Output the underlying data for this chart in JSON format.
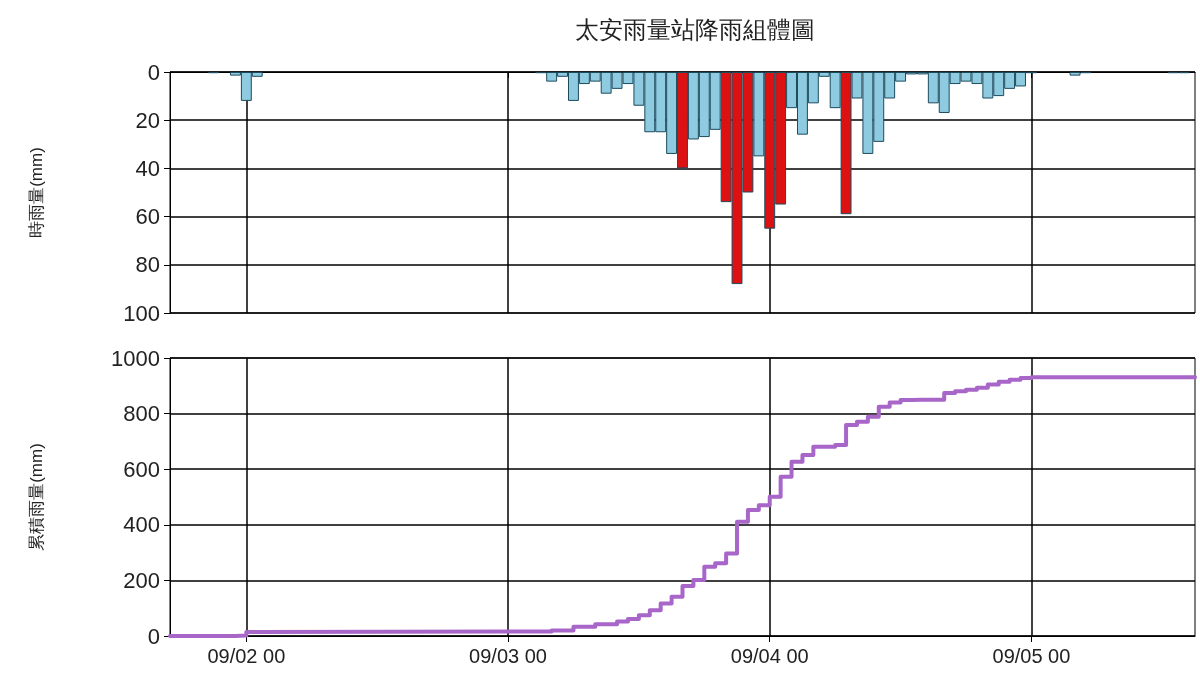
{
  "chart_data": [
    {
      "type": "bar",
      "title": "太安雨量站降雨組體圖",
      "ylabel": "時雨量(mm)",
      "x": [
        "--09-01T21:00",
        "--09-01T23:00",
        "--09-02T00:00",
        "--09-02T01:00",
        "--09-03T03:00",
        "--09-03T04:00",
        "--09-03T05:00",
        "--09-03T06:00",
        "--09-03T07:00",
        "--09-03T08:00",
        "--09-03T09:00",
        "--09-03T10:00",
        "--09-03T11:00",
        "--09-03T12:00",
        "--09-03T13:00",
        "--09-03T14:00",
        "--09-03T15:00",
        "--09-03T16:00",
        "--09-03T17:00",
        "--09-03T18:00",
        "--09-03T19:00",
        "--09-03T20:00",
        "--09-03T21:00",
        "--09-03T22:00",
        "--09-03T23:00",
        "--09-04T00:00",
        "--09-04T01:00",
        "--09-04T02:00",
        "--09-04T03:00",
        "--09-04T04:00",
        "--09-04T05:00",
        "--09-04T06:00",
        "--09-04T07:00",
        "--09-04T08:00",
        "--09-04T09:00",
        "--09-04T10:00",
        "--09-04T11:00",
        "--09-04T12:00",
        "--09-04T13:00",
        "--09-04T14:00",
        "--09-04T15:00",
        "--09-04T16:00",
        "--09-04T17:00",
        "--09-04T18:00",
        "--09-04T19:00",
        "--09-04T20:00",
        "--09-04T21:00",
        "--09-04T22:00",
        "--09-04T23:00",
        "--09-05T00:00",
        "--09-05T04:00",
        "--09-05T05:00",
        "--09-05T13:00",
        "--09-05T14:00"
      ],
      "values": [
        0.5,
        1.5,
        12,
        2,
        0.5,
        4,
        2,
        12,
        5,
        4,
        9,
        7,
        5,
        14,
        25,
        25,
        34,
        40,
        28,
        27,
        24,
        54,
        88,
        50,
        35,
        65,
        55,
        15,
        26,
        13,
        2,
        15,
        59,
        11,
        34,
        29,
        11,
        4,
        1,
        1,
        13,
        17,
        5,
        4,
        5,
        11,
        10,
        7,
        6,
        0.5,
        1.5,
        0.5,
        0.5,
        0.5
      ],
      "colors": [
        "#8ecae0",
        "#8ecae0",
        "#8ecae0",
        "#8ecae0",
        "#8ecae0",
        "#8ecae0",
        "#8ecae0",
        "#8ecae0",
        "#8ecae0",
        "#8ecae0",
        "#8ecae0",
        "#8ecae0",
        "#8ecae0",
        "#8ecae0",
        "#8ecae0",
        "#8ecae0",
        "#8ecae0",
        "#dd1111",
        "#8ecae0",
        "#8ecae0",
        "#8ecae0",
        "#dd1111",
        "#dd1111",
        "#dd1111",
        "#8ecae0",
        "#dd1111",
        "#dd1111",
        "#8ecae0",
        "#8ecae0",
        "#8ecae0",
        "#8ecae0",
        "#8ecae0",
        "#dd1111",
        "#8ecae0",
        "#8ecae0",
        "#8ecae0",
        "#8ecae0",
        "#8ecae0",
        "#8ecae0",
        "#8ecae0",
        "#8ecae0",
        "#8ecae0",
        "#8ecae0",
        "#8ecae0",
        "#8ecae0",
        "#8ecae0",
        "#8ecae0",
        "#8ecae0",
        "#8ecae0",
        "#8ecae0",
        "#8ecae0",
        "#8ecae0",
        "#8ecae0",
        "#8ecae0"
      ],
      "xlim": [
        "--09-01T17:00",
        "--09-05T15:00"
      ],
      "xticks": [
        {
          "value": "--09-02T00:00",
          "label": null
        },
        {
          "value": "--09-03T00:00",
          "label": null
        },
        {
          "value": "--09-04T00:00",
          "label": null
        },
        {
          "value": "--09-05T00:00",
          "label": null
        }
      ],
      "ylim": [
        100,
        0
      ],
      "yticks": [
        0,
        20,
        40,
        60,
        80,
        100
      ],
      "grid": true,
      "tick_labels": "y"
    },
    {
      "type": "step",
      "ylabel": "累積雨量(mm)",
      "color": "#a866c8",
      "x": [
        "--09-01T17:00",
        "--09-01T22:00",
        "--09-01T23:00",
        "--09-02T00:00",
        "--09-02T01:00",
        "--09-03T02:00",
        "--09-03T04:00",
        "--09-03T06:00",
        "--09-03T08:00",
        "--09-03T10:00",
        "--09-03T11:00",
        "--09-03T12:00",
        "--09-03T13:00",
        "--09-03T14:00",
        "--09-03T15:00",
        "--09-03T16:00",
        "--09-03T17:00",
        "--09-03T18:00",
        "--09-03T19:00",
        "--09-03T20:00",
        "--09-03T21:00",
        "--09-03T22:00",
        "--09-03T23:00",
        "--09-04T00:00",
        "--09-04T01:00",
        "--09-04T02:00",
        "--09-04T03:00",
        "--09-04T04:00",
        "--09-04T05:00",
        "--09-04T06:00",
        "--09-04T07:00",
        "--09-04T08:00",
        "--09-04T09:00",
        "--09-04T10:00",
        "--09-04T11:00",
        "--09-04T12:00",
        "--09-04T13:00",
        "--09-04T14:00",
        "--09-04T15:00",
        "--09-04T16:00",
        "--09-04T17:00",
        "--09-04T18:00",
        "--09-04T19:00",
        "--09-04T20:00",
        "--09-04T21:00",
        "--09-04T22:00",
        "--09-04T23:00",
        "--09-05T00:00",
        "--09-05T15:00"
      ],
      "values": [
        0,
        0,
        2,
        14,
        16,
        16,
        20,
        33,
        42,
        52,
        61,
        75,
        93,
        117,
        141,
        180,
        201,
        249,
        262,
        297,
        411,
        453,
        470,
        501,
        573,
        627,
        651,
        681,
        681,
        687,
        759,
        771,
        789,
        825,
        840,
        849,
        850,
        850,
        850,
        874,
        880,
        886,
        893,
        905,
        915,
        922,
        928,
        931,
        931
      ],
      "xlim": [
        "--09-01T17:00",
        "--09-05T15:00"
      ],
      "xticks": [
        {
          "value": "--09-02T00:00",
          "label": "09/02 00"
        },
        {
          "value": "--09-03T00:00",
          "label": "09/03 00"
        },
        {
          "value": "--09-04T00:00",
          "label": "09/04 00"
        },
        {
          "value": "--09-05T00:00",
          "label": "09/05 00"
        }
      ],
      "ylim": [
        0,
        1000
      ],
      "yticks": [
        0,
        200,
        400,
        600,
        800,
        1000
      ],
      "grid": true
    }
  ]
}
